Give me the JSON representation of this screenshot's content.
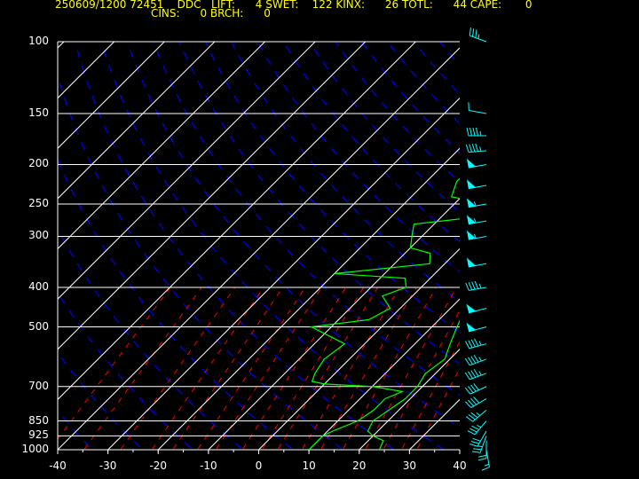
{
  "header": {
    "line1": "250609/1200 72451    DDC   LIFT:      4 SWET:    122 KINX:      26 TOTL:      44 CAPE:       0",
    "line2": "CINS:      0 BRCH:      0"
  },
  "colors": {
    "background": "#000000",
    "isobar": "#ffffff",
    "isotherm": "#ffffff",
    "dry_adiabat": "#0000ff",
    "mixing_ratio": "#ff0000",
    "profile": "#00ff00",
    "wind_barbs": "#00ffff",
    "header": "#ffff00"
  },
  "chart_data": {
    "type": "line",
    "pressure_levels": [
      100,
      150,
      200,
      250,
      300,
      400,
      500,
      700,
      850,
      925,
      1000
    ],
    "temperature_ticks": [
      -40,
      -30,
      -20,
      -10,
      0,
      10,
      20,
      30,
      40
    ],
    "ylim": [
      1000,
      100
    ],
    "xlim": [
      -40,
      40
    ],
    "y_scale": "log",
    "series": [
      {
        "points": [
          [
            1000,
            24
          ],
          [
            950,
            23
          ],
          [
            925,
            20
          ],
          [
            900,
            18
          ],
          [
            850,
            17
          ],
          [
            800,
            18
          ],
          [
            750,
            19
          ],
          [
            700,
            19
          ],
          [
            650,
            18
          ],
          [
            600,
            19
          ],
          [
            550,
            17
          ],
          [
            500,
            15
          ],
          [
            450,
            13
          ],
          [
            400,
            11
          ],
          [
            350,
            7
          ],
          [
            300,
            2
          ],
          [
            275,
            0
          ],
          [
            250,
            0
          ],
          [
            225,
            0
          ],
          [
            200,
            1
          ],
          [
            185,
            3
          ],
          [
            170,
            4
          ],
          [
            160,
            5
          ],
          [
            150,
            7
          ],
          [
            140,
            8
          ],
          [
            130,
            10
          ],
          [
            120,
            11
          ],
          [
            110,
            14
          ],
          [
            100,
            17
          ]
        ]
      },
      {
        "points": [
          [
            1000,
            10
          ],
          [
            925,
            10
          ],
          [
            900,
            11
          ],
          [
            850,
            14
          ],
          [
            800,
            15
          ],
          [
            750,
            15
          ],
          [
            720,
            17
          ],
          [
            700,
            10
          ],
          [
            690,
            0
          ],
          [
            680,
            -3
          ],
          [
            650,
            -4
          ],
          [
            600,
            -5
          ],
          [
            550,
            -4
          ],
          [
            500,
            -14
          ],
          [
            480,
            -4
          ],
          [
            450,
            -2
          ],
          [
            420,
            -6
          ],
          [
            400,
            -3
          ],
          [
            380,
            -5
          ],
          [
            370,
            -20
          ],
          [
            350,
            -3
          ],
          [
            330,
            -5
          ],
          [
            320,
            -10
          ],
          [
            300,
            -12
          ],
          [
            280,
            -14
          ],
          [
            270,
            -4
          ],
          [
            260,
            -6
          ],
          [
            250,
            -3
          ],
          [
            240,
            -12
          ],
          [
            220,
            -14
          ],
          [
            200,
            -14
          ],
          [
            180,
            -14
          ],
          [
            170,
            -14
          ],
          [
            160,
            -14
          ],
          [
            150,
            -15
          ],
          [
            140,
            -15
          ],
          [
            130,
            -12
          ],
          [
            120,
            -12
          ],
          [
            110,
            -10
          ],
          [
            100,
            -6
          ]
        ]
      }
    ],
    "wind_barbs": [
      {
        "p": 1000,
        "dir": 170,
        "kt": 15
      },
      {
        "p": 950,
        "dir": 180,
        "kt": 20
      },
      {
        "p": 925,
        "dir": 200,
        "kt": 25
      },
      {
        "p": 900,
        "dir": 210,
        "kt": 30
      },
      {
        "p": 850,
        "dir": 220,
        "kt": 35
      },
      {
        "p": 800,
        "dir": 230,
        "kt": 35
      },
      {
        "p": 750,
        "dir": 240,
        "kt": 40
      },
      {
        "p": 700,
        "dir": 245,
        "kt": 40
      },
      {
        "p": 650,
        "dir": 250,
        "kt": 45
      },
      {
        "p": 600,
        "dir": 250,
        "kt": 45
      },
      {
        "p": 550,
        "dir": 255,
        "kt": 45
      },
      {
        "p": 500,
        "dir": 255,
        "kt": 50
      },
      {
        "p": 450,
        "dir": 255,
        "kt": 50
      },
      {
        "p": 400,
        "dir": 260,
        "kt": 45
      },
      {
        "p": 350,
        "dir": 260,
        "kt": 50
      },
      {
        "p": 300,
        "dir": 260,
        "kt": 55
      },
      {
        "p": 275,
        "dir": 260,
        "kt": 55
      },
      {
        "p": 250,
        "dir": 260,
        "kt": 55
      },
      {
        "p": 225,
        "dir": 260,
        "kt": 50
      },
      {
        "p": 200,
        "dir": 260,
        "kt": 50
      },
      {
        "p": 185,
        "dir": 265,
        "kt": 45
      },
      {
        "p": 170,
        "dir": 270,
        "kt": 45
      },
      {
        "p": 150,
        "dir": 280,
        "kt": 10
      },
      {
        "p": 100,
        "dir": 290,
        "kt": 35
      }
    ]
  }
}
